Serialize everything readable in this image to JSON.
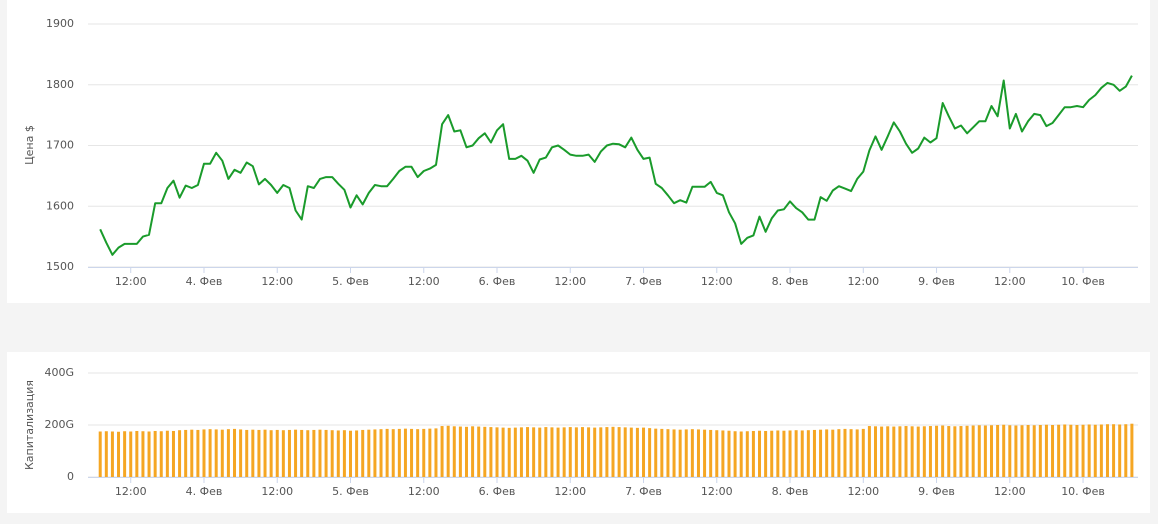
{
  "chart_data": [
    {
      "type": "line",
      "y_label": "Цена $",
      "color": "#1a9b2b",
      "grid": true,
      "ylim": [
        1500,
        1900
      ],
      "yticks": [
        1500,
        1600,
        1700,
        1800,
        1900
      ],
      "xlim": [
        5,
        177
      ],
      "xticks": [
        {
          "value": 12,
          "label": "12:00"
        },
        {
          "value": 24,
          "label": "4. Фев"
        },
        {
          "value": 36,
          "label": "12:00"
        },
        {
          "value": 48,
          "label": "5. Фев"
        },
        {
          "value": 60,
          "label": "12:00"
        },
        {
          "value": 72,
          "label": "6. Фев"
        },
        {
          "value": 84,
          "label": "12:00"
        },
        {
          "value": 96,
          "label": "7. Фев"
        },
        {
          "value": 108,
          "label": "12:00"
        },
        {
          "value": 120,
          "label": "8. Фев"
        },
        {
          "value": 132,
          "label": "12:00"
        },
        {
          "value": 144,
          "label": "9. Фев"
        },
        {
          "value": 156,
          "label": "12:00"
        },
        {
          "value": 168,
          "label": "10. Фев"
        }
      ],
      "x": [
        7,
        8,
        9,
        10,
        11,
        12,
        13,
        14,
        15,
        16,
        17,
        18,
        19,
        20,
        21,
        22,
        23,
        24,
        25,
        26,
        27,
        28,
        29,
        30,
        31,
        32,
        33,
        34,
        35,
        36,
        37,
        38,
        39,
        40,
        41,
        42,
        43,
        44,
        45,
        46,
        47,
        48,
        49,
        50,
        51,
        52,
        53,
        54,
        55,
        56,
        57,
        58,
        59,
        60,
        61,
        62,
        63,
        64,
        65,
        66,
        67,
        68,
        69,
        70,
        71,
        72,
        73,
        74,
        75,
        76,
        77,
        78,
        79,
        80,
        81,
        82,
        83,
        84,
        85,
        86,
        87,
        88,
        89,
        90,
        91,
        92,
        93,
        94,
        95,
        96,
        97,
        98,
        99,
        100,
        101,
        102,
        103,
        104,
        105,
        106,
        107,
        108,
        109,
        110,
        111,
        112,
        113,
        114,
        115,
        116,
        117,
        118,
        119,
        120,
        121,
        122,
        123,
        124,
        125,
        126,
        127,
        128,
        129,
        130,
        131,
        132,
        133,
        134,
        135,
        136,
        137,
        138,
        139,
        140,
        141,
        142,
        143,
        144,
        145,
        146,
        147,
        148,
        149,
        150,
        151,
        152,
        153,
        154,
        155,
        156,
        157,
        158,
        159,
        160,
        161,
        162,
        163,
        164,
        165,
        166,
        167,
        168,
        169,
        170,
        171,
        172,
        173,
        174,
        175,
        176
      ],
      "values": [
        1562,
        1540,
        1520,
        1532,
        1538,
        1538,
        1538,
        1550,
        1553,
        1605,
        1605,
        1630,
        1642,
        1614,
        1634,
        1630,
        1635,
        1670,
        1670,
        1688,
        1675,
        1645,
        1660,
        1655,
        1672,
        1666,
        1636,
        1645,
        1635,
        1622,
        1635,
        1630,
        1593,
        1578,
        1633,
        1630,
        1645,
        1648,
        1648,
        1637,
        1627,
        1598,
        1618,
        1603,
        1622,
        1635,
        1633,
        1633,
        1645,
        1658,
        1665,
        1665,
        1648,
        1658,
        1662,
        1668,
        1735,
        1750,
        1723,
        1725,
        1697,
        1700,
        1712,
        1720,
        1705,
        1725,
        1735,
        1678,
        1678,
        1683,
        1675,
        1655,
        1677,
        1680,
        1697,
        1700,
        1693,
        1685,
        1683,
        1683,
        1685,
        1673,
        1690,
        1700,
        1703,
        1702,
        1697,
        1713,
        1693,
        1678,
        1680,
        1637,
        1630,
        1618,
        1605,
        1610,
        1606,
        1632,
        1632,
        1632,
        1640,
        1622,
        1618,
        1590,
        1572,
        1538,
        1548,
        1552,
        1583,
        1558,
        1580,
        1593,
        1595,
        1608,
        1597,
        1590,
        1578,
        1578,
        1615,
        1609,
        1626,
        1633,
        1629,
        1625,
        1645,
        1657,
        1692,
        1715,
        1693,
        1715,
        1738,
        1723,
        1703,
        1688,
        1695,
        1713,
        1705,
        1712,
        1770,
        1748,
        1728,
        1733,
        1720,
        1730,
        1740,
        1740,
        1765,
        1748,
        1807,
        1728,
        1752,
        1723,
        1740,
        1752,
        1750,
        1732,
        1737,
        1750,
        1763,
        1763,
        1765,
        1763,
        1775,
        1783,
        1795,
        1803,
        1800,
        1790,
        1797,
        1815
      ]
    },
    {
      "type": "bar",
      "y_label": "Капитализация",
      "color": "#f5a623",
      "grid": true,
      "ylim": [
        0,
        400
      ],
      "yticks": [
        0,
        {
          "value": 200,
          "label": "200G"
        },
        {
          "value": 400,
          "label": "400G"
        }
      ],
      "xlim": [
        5,
        177
      ],
      "xticks": [
        {
          "value": 12,
          "label": "12:00"
        },
        {
          "value": 24,
          "label": "4. Фев"
        },
        {
          "value": 36,
          "label": "12:00"
        },
        {
          "value": 48,
          "label": "5. Фев"
        },
        {
          "value": 60,
          "label": "12:00"
        },
        {
          "value": 72,
          "label": "6. Фев"
        },
        {
          "value": 84,
          "label": "12:00"
        },
        {
          "value": 96,
          "label": "7. Фев"
        },
        {
          "value": 108,
          "label": "12:00"
        },
        {
          "value": 120,
          "label": "8. Фев"
        },
        {
          "value": 132,
          "label": "12:00"
        },
        {
          "value": 144,
          "label": "9. Фев"
        },
        {
          "value": 156,
          "label": "12:00"
        },
        {
          "value": 168,
          "label": "10. Фев"
        }
      ],
      "x": [
        7,
        8,
        9,
        10,
        11,
        12,
        13,
        14,
        15,
        16,
        17,
        18,
        19,
        20,
        21,
        22,
        23,
        24,
        25,
        26,
        27,
        28,
        29,
        30,
        31,
        32,
        33,
        34,
        35,
        36,
        37,
        38,
        39,
        40,
        41,
        42,
        43,
        44,
        45,
        46,
        47,
        48,
        49,
        50,
        51,
        52,
        53,
        54,
        55,
        56,
        57,
        58,
        59,
        60,
        61,
        62,
        63,
        64,
        65,
        66,
        67,
        68,
        69,
        70,
        71,
        72,
        73,
        74,
        75,
        76,
        77,
        78,
        79,
        80,
        81,
        82,
        83,
        84,
        85,
        86,
        87,
        88,
        89,
        90,
        91,
        92,
        93,
        94,
        95,
        96,
        97,
        98,
        99,
        100,
        101,
        102,
        103,
        104,
        105,
        106,
        107,
        108,
        109,
        110,
        111,
        112,
        113,
        114,
        115,
        116,
        117,
        118,
        119,
        120,
        121,
        122,
        123,
        124,
        125,
        126,
        127,
        128,
        129,
        130,
        131,
        132,
        133,
        134,
        135,
        136,
        137,
        138,
        139,
        140,
        141,
        142,
        143,
        144,
        145,
        146,
        147,
        148,
        149,
        150,
        151,
        152,
        153,
        154,
        155,
        156,
        157,
        158,
        159,
        160,
        161,
        162,
        163,
        164,
        165,
        166,
        167,
        168,
        169,
        170,
        171,
        172,
        173,
        174,
        175,
        176
      ],
      "values": [
        175,
        176,
        175,
        174,
        176,
        175,
        177,
        176,
        175,
        177,
        176,
        178,
        177,
        180,
        181,
        182,
        181,
        183,
        184,
        183,
        182,
        184,
        185,
        183,
        181,
        182,
        181,
        182,
        180,
        181,
        180,
        181,
        182,
        181,
        180,
        181,
        182,
        181,
        180,
        179,
        180,
        178,
        179,
        181,
        182,
        183,
        184,
        185,
        184,
        185,
        186,
        185,
        184,
        185,
        186,
        187,
        196,
        197,
        195,
        194,
        193,
        195,
        194,
        193,
        192,
        191,
        190,
        189,
        190,
        191,
        192,
        191,
        190,
        192,
        191,
        190,
        191,
        192,
        191,
        192,
        191,
        190,
        191,
        192,
        193,
        192,
        191,
        190,
        189,
        190,
        188,
        186,
        185,
        184,
        183,
        182,
        183,
        184,
        183,
        182,
        181,
        180,
        179,
        178,
        176,
        175,
        176,
        177,
        178,
        177,
        178,
        179,
        178,
        179,
        180,
        179,
        180,
        181,
        182,
        183,
        182,
        184,
        185,
        184,
        183,
        185,
        196,
        195,
        194,
        195,
        194,
        195,
        196,
        195,
        194,
        195,
        196,
        197,
        198,
        196,
        195,
        196,
        197,
        198,
        199,
        198,
        199,
        200,
        201,
        199,
        198,
        199,
        200,
        199,
        200,
        201,
        200,
        201,
        202,
        201,
        200,
        201,
        202,
        201,
        202,
        203,
        203,
        202,
        203,
        205
      ]
    }
  ]
}
